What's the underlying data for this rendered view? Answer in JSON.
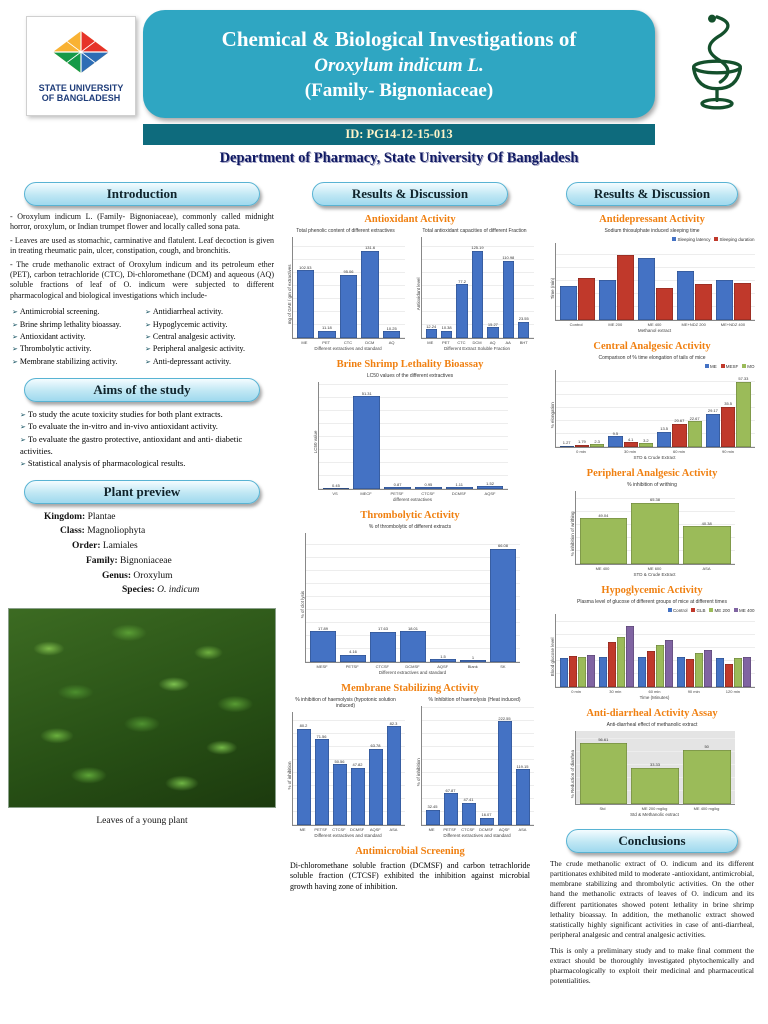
{
  "icons": {
    "bullet": "➢"
  },
  "header": {
    "title_line1": "Chemical & Biological Investigations of",
    "title_line2": "Oroxylum indicum L.",
    "title_line3": "(Family- Bignoniaceae)",
    "id_label": "ID: PG14-12-15-013",
    "department": "Department of Pharmacy, State University Of Bangladesh",
    "logo_line1": "STATE UNIVERSITY",
    "logo_line2": "OF BANGLADESH"
  },
  "left": {
    "intro_header": "Introduction",
    "intro_paragraphs": [
      "- Oroxylum indicum L. (Family- Bignoniaceae), commonly called midnight horror, oroxylum, or Indian trumpet flower and locally called sona pata.",
      "- Leaves are used as stomachic, carminative and flatulent. Leaf decoction is given in treating rheumatic pain, ulcer, constipation, cough, and bronchitis.",
      "- The crude methanolic extract of Oroxylum indicum and its petroleum ether (PET), carbon tetrachloride (CTC), Di-chloromethane (DCM) and aqueous (AQ) soluble fractions of leaf of O. indicum were subjected to different pharmacological and biological investigations which include-"
    ],
    "checklist_left": [
      "Antimicrobial screening.",
      "Brine shrimp lethality bioassay.",
      "Antioxidant activity.",
      "Thrombolytic activity.",
      "Membrane stabilizing activity."
    ],
    "checklist_right": [
      "Antidiarrheal activity.",
      "Hypoglycemic activity.",
      "Central analgesic activity.",
      "Peripheral analgesic activity.",
      "Anti-depressant activity."
    ],
    "aims_header": "Aims of the study",
    "aims": [
      "To study the acute toxicity studies for both plant extracts.",
      "To evaluate the in-vitro and in-vivo antioxidant activity.",
      "To evaluate the gastro protective, antioxidant and anti- diabetic activities.",
      "Statistical analysis of pharmacological results."
    ],
    "plant_header": "Plant  preview",
    "taxonomy": [
      {
        "label": "Kingdom:",
        "value": "Plantae"
      },
      {
        "label": "Class:",
        "value": "Magnoliophyta"
      },
      {
        "label": "Order:",
        "value": "Lamiales"
      },
      {
        "label": "Family:",
        "value": "Bignoniaceae"
      },
      {
        "label": "Genus:",
        "value": "Oroxylum"
      },
      {
        "label": "Species:",
        "value": "O. indicum"
      }
    ],
    "photo_caption": "Leaves of a young plant"
  },
  "middle": {
    "header": "Results  & Discussion",
    "antioxidant_title": "Antioxidant Activity",
    "brine_title": "Brine Shrimp Lethality Bioassay",
    "thrombolytic_title": "Thrombolytic Activity",
    "membrane_title": "Membrane Stabilizing Activity",
    "antimicrobial_title": "Antimicrobial Screening",
    "antimicrobial_text": "Di-chloromethane soluble fraction (DCMSF) and carbon tetrachloride soluble fraction (CTCSF) exhibited the inhibition against microbial growth having zone of inhibition."
  },
  "right": {
    "header": "Results & Discussion",
    "antidepressant_title": "Antidepressant Activity",
    "central_title": "Central Analgesic Activity",
    "peripheral_title": "Peripheral Analgesic Activity",
    "hypoglycemic_title": "Hypoglycemic Activity",
    "antidiarrheal_title": "Anti-diarrheal Activity Assay",
    "conclusions_header": "Conclusions",
    "conclusions": [
      "The crude methanolic extract of O. indicum and its different partitionates exhibited mild to moderate -antioxidant, antimicrobial, membrane stabilizing and thrombolytic activities. On the other hand the methanolic extracts of leaves of O. indicum and its different partitionates showed potent lethality in brine shrimp lethality bioassay. In addition, the methanolic extract showed statistically highly significant activities in case of anti-diarrheal, peripheral analgesic and central analgesic activities.",
      "This is only a preliminary study and to make final comment the extract should be thoroughly investigated phytochemically and pharmacologically to exploit their medicinal and pharmaceutical potentialities."
    ]
  },
  "chart_data": [
    {
      "id": "phenolic",
      "type": "bar",
      "title": "Total phenolic content of different extractives",
      "ylabel": "mg of GAE / gm of extractives",
      "xlabel": "Different extractives and standard",
      "categories": [
        "ME",
        "PET",
        "CTC",
        "DCM",
        "AQ"
      ],
      "values": [
        102.53,
        11.18,
        95.06,
        131.6,
        10.25
      ],
      "color": "#4472c4",
      "show_values": true
    },
    {
      "id": "antiox_capacity",
      "type": "bar",
      "title": "Total antioxidant capacities of different Fraction",
      "ylabel": "Antioxidant level",
      "xlabel": "Different Extract Soluble Fraction",
      "categories": [
        "ME",
        "PET",
        "CTC",
        "DCM",
        "AQ",
        "AA",
        "BHT"
      ],
      "values": [
        12.24,
        10.38,
        77.2,
        125.19,
        15.27,
        110.98,
        23.55
      ],
      "color": "#4472c4",
      "show_values": true
    },
    {
      "id": "brine",
      "type": "bar",
      "title": "LC50 values of the different extractives",
      "ylabel": "LC50 value",
      "xlabel": "different extractives",
      "categories": [
        "VS",
        "MECF",
        "PETSF",
        "CTCSF",
        "DCMSF",
        "AQSF"
      ],
      "values": [
        0.45,
        51.31,
        0.87,
        0.95,
        1.11,
        1.52
      ],
      "color": "#4472c4",
      "show_values": true
    },
    {
      "id": "thrombolytic",
      "type": "bar",
      "title": "% of thrombolytic of different extracts",
      "ylabel": "% of clot lysis",
      "xlabel": "Different extractives and standard",
      "categories": [
        "MESF",
        "PETSF",
        "CTCSF",
        "DCMSF",
        "AQSF",
        "Blank",
        "SK"
      ],
      "values": [
        17.89,
        4.16,
        17.63,
        18.01,
        1.5,
        1.0,
        66.08
      ],
      "color": "#4472c4",
      "show_values": true
    },
    {
      "id": "mem_hypotonic",
      "type": "bar",
      "title": "% inhibition of haemolysis (hypotonic solution induced)",
      "ylabel": "% of inhibition",
      "xlabel": "Different extractives and standard",
      "categories": [
        "ME",
        "PETSF",
        "CTCSF",
        "DCMSF",
        "AQSF",
        "ASA"
      ],
      "values": [
        80.2,
        71.56,
        50.56,
        47.82,
        63.78,
        82.3
      ],
      "color": "#4472c4",
      "show_values": true
    },
    {
      "id": "mem_heat",
      "type": "bar",
      "title": "% Inhibition of haemolysis (Heat induced)",
      "ylabel": "% of inhibition",
      "xlabel": "Different extractives and standard",
      "categories": [
        "ME",
        "PETSF",
        "CTCSF",
        "DCMSF",
        "AQSF",
        "ASA"
      ],
      "values": [
        32.45,
        67.87,
        47.41,
        16.07,
        222.55,
        119.15
      ],
      "color": "#4472c4",
      "show_values": true
    },
    {
      "id": "antidepressant",
      "type": "bar",
      "title": "Sodium thiosulphate induced sleeping time",
      "ylabel": "Time (min)",
      "xlabel": "Methanol extract",
      "categories": [
        "Control",
        "ME 200",
        "ME 400",
        "ME+NDZ 200",
        "ME+NDZ 400"
      ],
      "series": [
        {
          "name": "Sleeping latency",
          "values": [
            130,
            150,
            235,
            185,
            150
          ]
        },
        {
          "name": "Sleeping duration",
          "values": [
            160,
            245,
            120,
            135,
            140
          ]
        }
      ],
      "colors": [
        "#4472c4",
        "#c0392b"
      ]
    },
    {
      "id": "central",
      "type": "bar",
      "title": "Comparison of % time elongation of tails of mice",
      "ylabel": "% elongation",
      "xlabel": "STD & Crude Extract",
      "categories": [
        "0 min",
        "30 min",
        "60 min",
        "90 min"
      ],
      "series": [
        {
          "name": "ME",
          "values": [
            1.27,
            9.5,
            13.5,
            29.17
          ]
        },
        {
          "name": "MESF",
          "values": [
            1.79,
            4.1,
            20.67,
            35.5
          ]
        },
        {
          "name": "MO",
          "values": [
            2.3,
            3.2,
            22.67,
            57.33
          ]
        }
      ],
      "colors": [
        "#4472c4",
        "#c0392b",
        "#9bbb59"
      ],
      "show_values": true
    },
    {
      "id": "peripheral",
      "type": "bar",
      "title": "% inhibition of writhing",
      "ylabel": "% inhibition of writhing",
      "xlabel": "STD & Crude Extract",
      "categories": [
        "ME 400",
        "ME 600",
        "ASA"
      ],
      "values": [
        49.04,
        65.38,
        40.38
      ],
      "color": "#9bbb59",
      "show_values": true
    },
    {
      "id": "hypoglycemic",
      "type": "bar",
      "title": "Plasma level of glucose of different groups of mice at different times",
      "ylabel": "Blood glucose level",
      "xlabel": "Time (Minutes)",
      "categories": [
        "0 min",
        "30 min",
        "60 min",
        "90 min",
        "120 min"
      ],
      "series": [
        {
          "name": "Control",
          "values": [
            4.2,
            4.3,
            4.4,
            4.3,
            4.2
          ]
        },
        {
          "name": "GLB",
          "values": [
            4.5,
            6.5,
            5.2,
            4.1,
            3.4
          ]
        },
        {
          "name": "ME 200",
          "values": [
            4.4,
            7.2,
            6.1,
            5.0,
            4.2
          ]
        },
        {
          "name": "ME 400",
          "values": [
            4.6,
            8.9,
            6.8,
            5.4,
            4.4
          ]
        }
      ],
      "colors": [
        "#4472c4",
        "#c0392b",
        "#9bbb59",
        "#8064a2"
      ]
    },
    {
      "id": "antidiarrheal",
      "type": "bar",
      "title": "Anti-diarrheal effect of methanolic extract",
      "ylabel": "% Reduction of diarrhea",
      "xlabel": "Std & Methanolic extract",
      "categories": [
        "Std",
        "ME 200 mg/kg",
        "ME 400 mg/kg"
      ],
      "values": [
        56.61,
        33.33,
        50.0
      ],
      "color": "#9bbb59",
      "bg": "#e4e4e4",
      "show_values": true
    }
  ]
}
